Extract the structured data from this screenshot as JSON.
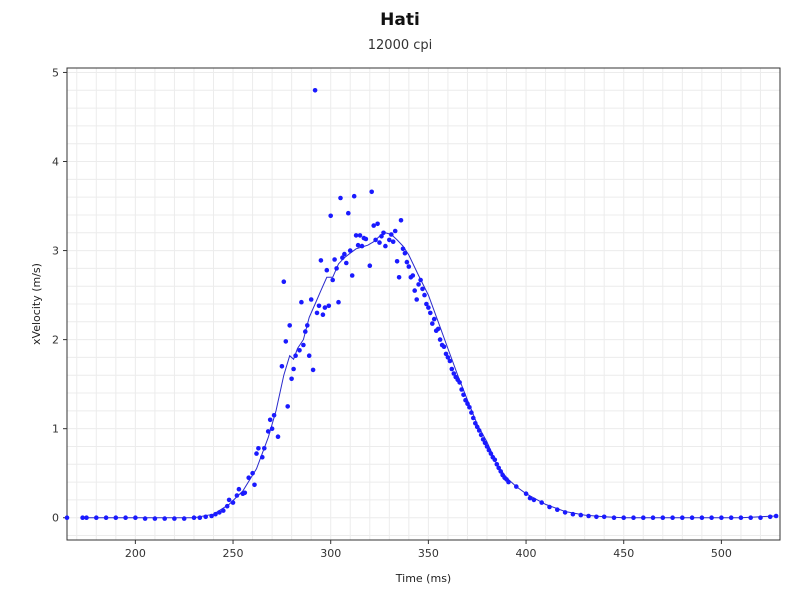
{
  "chart_data": {
    "type": "scatter",
    "title": "Hati",
    "subtitle": "12000 cpi",
    "xlabel": "Time (ms)",
    "ylabel": "xVelocity (m/s)",
    "xlim": [
      165,
      530
    ],
    "ylim": [
      -0.25,
      5.05
    ],
    "xticks": [
      200,
      250,
      300,
      350,
      400,
      450,
      500
    ],
    "yticks": [
      0,
      1,
      2,
      3,
      4,
      5
    ],
    "grid": true,
    "colors": {
      "points": "#1a1aff",
      "line": "#2a2acc",
      "grid": "#ececec",
      "axis": "#333333"
    },
    "series": [
      {
        "type": "scatter",
        "points": [
          [
            165,
            0
          ],
          [
            173,
            0
          ],
          [
            175,
            0
          ],
          [
            180,
            0
          ],
          [
            185,
            0
          ],
          [
            190,
            0
          ],
          [
            195,
            0
          ],
          [
            200,
            0
          ],
          [
            205,
            -0.01
          ],
          [
            210,
            -0.01
          ],
          [
            215,
            -0.01
          ],
          [
            220,
            -0.01
          ],
          [
            225,
            -0.01
          ],
          [
            230,
            0
          ],
          [
            233,
            0
          ],
          [
            236,
            0.01
          ],
          [
            239,
            0.02
          ],
          [
            241,
            0.04
          ],
          [
            243,
            0.06
          ],
          [
            245,
            0.08
          ],
          [
            247,
            0.13
          ],
          [
            248,
            0.2
          ],
          [
            250,
            0.17
          ],
          [
            252,
            0.25
          ],
          [
            253,
            0.32
          ],
          [
            255,
            0.27
          ],
          [
            256,
            0.28
          ],
          [
            258,
            0.45
          ],
          [
            260,
            0.5
          ],
          [
            261,
            0.37
          ],
          [
            262,
            0.72
          ],
          [
            263,
            0.78
          ],
          [
            265,
            0.68
          ],
          [
            266,
            0.78
          ],
          [
            268,
            0.97
          ],
          [
            269,
            1.1
          ],
          [
            270,
            1.0
          ],
          [
            271,
            1.15
          ],
          [
            273,
            0.91
          ],
          [
            275,
            1.7
          ],
          [
            276,
            2.65
          ],
          [
            277,
            1.98
          ],
          [
            278,
            1.25
          ],
          [
            279,
            2.16
          ],
          [
            280,
            1.56
          ],
          [
            281,
            1.67
          ],
          [
            282,
            1.82
          ],
          [
            284,
            1.88
          ],
          [
            285,
            2.42
          ],
          [
            286,
            1.94
          ],
          [
            287,
            2.09
          ],
          [
            288,
            2.16
          ],
          [
            289,
            1.82
          ],
          [
            290,
            2.45
          ],
          [
            291,
            1.66
          ],
          [
            292,
            4.8
          ],
          [
            293,
            2.3
          ],
          [
            294,
            2.38
          ],
          [
            295,
            2.89
          ],
          [
            296,
            2.28
          ],
          [
            297,
            2.36
          ],
          [
            298,
            2.78
          ],
          [
            299,
            2.38
          ],
          [
            300,
            3.39
          ],
          [
            301,
            2.67
          ],
          [
            302,
            2.9
          ],
          [
            303,
            2.8
          ],
          [
            304,
            2.42
          ],
          [
            305,
            3.59
          ],
          [
            306,
            2.92
          ],
          [
            307,
            2.96
          ],
          [
            308,
            2.86
          ],
          [
            309,
            3.42
          ],
          [
            310,
            3.0
          ],
          [
            311,
            2.72
          ],
          [
            312,
            3.61
          ],
          [
            313,
            3.17
          ],
          [
            314,
            3.06
          ],
          [
            315,
            3.17
          ],
          [
            316,
            3.05
          ],
          [
            317,
            3.14
          ],
          [
            318,
            3.13
          ],
          [
            320,
            2.83
          ],
          [
            321,
            3.66
          ],
          [
            322,
            3.28
          ],
          [
            323,
            3.12
          ],
          [
            324,
            3.3
          ],
          [
            325,
            3.09
          ],
          [
            326,
            3.16
          ],
          [
            327,
            3.2
          ],
          [
            328,
            3.05
          ],
          [
            330,
            3.12
          ],
          [
            331,
            3.18
          ],
          [
            332,
            3.1
          ],
          [
            333,
            3.22
          ],
          [
            334,
            2.88
          ],
          [
            335,
            2.7
          ],
          [
            336,
            3.34
          ],
          [
            337,
            3.02
          ],
          [
            338,
            2.97
          ],
          [
            339,
            2.87
          ],
          [
            340,
            2.82
          ],
          [
            341,
            2.7
          ],
          [
            342,
            2.72
          ],
          [
            343,
            2.55
          ],
          [
            344,
            2.45
          ],
          [
            345,
            2.62
          ],
          [
            346,
            2.67
          ],
          [
            347,
            2.57
          ],
          [
            348,
            2.5
          ],
          [
            349,
            2.4
          ],
          [
            350,
            2.36
          ],
          [
            351,
            2.3
          ],
          [
            352,
            2.18
          ],
          [
            353,
            2.23
          ],
          [
            354,
            2.1
          ],
          [
            355,
            2.12
          ],
          [
            356,
            2.0
          ],
          [
            357,
            1.94
          ],
          [
            358,
            1.92
          ],
          [
            359,
            1.84
          ],
          [
            360,
            1.8
          ],
          [
            361,
            1.76
          ],
          [
            362,
            1.67
          ],
          [
            363,
            1.62
          ],
          [
            364,
            1.58
          ],
          [
            365,
            1.55
          ],
          [
            366,
            1.52
          ],
          [
            367,
            1.44
          ],
          [
            368,
            1.38
          ],
          [
            369,
            1.32
          ],
          [
            370,
            1.28
          ],
          [
            371,
            1.24
          ],
          [
            372,
            1.18
          ],
          [
            373,
            1.12
          ],
          [
            374,
            1.06
          ],
          [
            375,
            1.02
          ],
          [
            376,
            0.98
          ],
          [
            377,
            0.93
          ],
          [
            378,
            0.88
          ],
          [
            379,
            0.84
          ],
          [
            380,
            0.8
          ],
          [
            381,
            0.76
          ],
          [
            382,
            0.72
          ],
          [
            383,
            0.68
          ],
          [
            384,
            0.65
          ],
          [
            385,
            0.6
          ],
          [
            386,
            0.56
          ],
          [
            387,
            0.52
          ],
          [
            388,
            0.48
          ],
          [
            389,
            0.45
          ],
          [
            390,
            0.43
          ],
          [
            391,
            0.4
          ],
          [
            395,
            0.35
          ],
          [
            400,
            0.27
          ],
          [
            402,
            0.22
          ],
          [
            404,
            0.2
          ],
          [
            408,
            0.17
          ],
          [
            412,
            0.12
          ],
          [
            416,
            0.09
          ],
          [
            420,
            0.06
          ],
          [
            424,
            0.04
          ],
          [
            428,
            0.03
          ],
          [
            432,
            0.02
          ],
          [
            436,
            0.01
          ],
          [
            440,
            0.01
          ],
          [
            445,
            0
          ],
          [
            450,
            0
          ],
          [
            455,
            0
          ],
          [
            460,
            0
          ],
          [
            465,
            0
          ],
          [
            470,
            0
          ],
          [
            475,
            0
          ],
          [
            480,
            0
          ],
          [
            485,
            0
          ],
          [
            490,
            0
          ],
          [
            495,
            0
          ],
          [
            500,
            0
          ],
          [
            505,
            0
          ],
          [
            510,
            0
          ],
          [
            515,
            0
          ],
          [
            520,
            0
          ],
          [
            525,
            0.01
          ],
          [
            528,
            0.02
          ]
        ]
      },
      {
        "type": "line",
        "points": [
          [
            173,
            0
          ],
          [
            230,
            0
          ],
          [
            240,
            0.04
          ],
          [
            248,
            0.15
          ],
          [
            255,
            0.3
          ],
          [
            262,
            0.55
          ],
          [
            268,
            0.9
          ],
          [
            272,
            1.2
          ],
          [
            276,
            1.6
          ],
          [
            279,
            1.82
          ],
          [
            281,
            1.78
          ],
          [
            283,
            1.9
          ],
          [
            286,
            2.0
          ],
          [
            289,
            2.25
          ],
          [
            292,
            2.4
          ],
          [
            295,
            2.55
          ],
          [
            298,
            2.7
          ],
          [
            301,
            2.7
          ],
          [
            304,
            2.85
          ],
          [
            307,
            2.92
          ],
          [
            310,
            2.97
          ],
          [
            313,
            3.02
          ],
          [
            316,
            3.04
          ],
          [
            319,
            3.06
          ],
          [
            322,
            3.1
          ],
          [
            325,
            3.16
          ],
          [
            328,
            3.2
          ],
          [
            331,
            3.18
          ],
          [
            334,
            3.12
          ],
          [
            337,
            3.05
          ],
          [
            340,
            2.95
          ],
          [
            345,
            2.72
          ],
          [
            350,
            2.5
          ],
          [
            355,
            2.2
          ],
          [
            360,
            1.9
          ],
          [
            365,
            1.6
          ],
          [
            370,
            1.32
          ],
          [
            375,
            1.05
          ],
          [
            380,
            0.85
          ],
          [
            385,
            0.6
          ],
          [
            390,
            0.45
          ],
          [
            395,
            0.35
          ],
          [
            400,
            0.27
          ],
          [
            410,
            0.15
          ],
          [
            420,
            0.07
          ],
          [
            430,
            0.03
          ],
          [
            440,
            0.01
          ],
          [
            450,
            0
          ],
          [
            510,
            0
          ],
          [
            528,
            0.02
          ]
        ]
      }
    ]
  }
}
